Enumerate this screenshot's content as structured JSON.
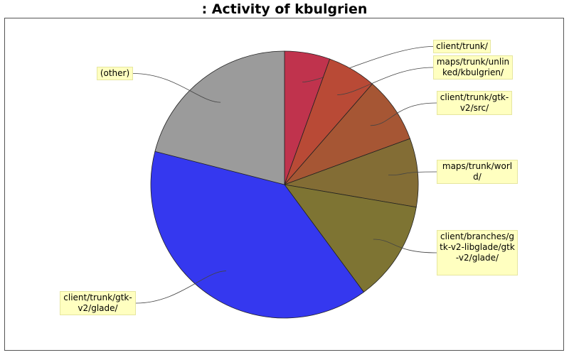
{
  "chart_data": {
    "type": "pie",
    "title": ": Activity of kbulgrien",
    "slices": [
      {
        "label": "client/trunk/",
        "value": 5.5,
        "color": "#c0334d"
      },
      {
        "label": "maps/trunk/unlinked/kbulgrien/",
        "value": 5.9,
        "color": "#b94a36"
      },
      {
        "label": "client/trunk/gtk-v2/src/",
        "value": 8.0,
        "color": "#a65634"
      },
      {
        "label": "maps/trunk/world/",
        "value": 8.3,
        "color": "#836d35"
      },
      {
        "label": "client/branches/gtk-v2-libglade/gtk-v2/glade/",
        "value": 12.2,
        "color": "#7e7433"
      },
      {
        "label": "client/trunk/gtk-v2/glade/",
        "value": 39.1,
        "color": "#3538ef"
      },
      {
        "label": "(other)",
        "value": 21.0,
        "color": "#9b9b9b"
      }
    ],
    "start_angle_deg": 0,
    "direction": "clockwise",
    "legend": "none"
  }
}
